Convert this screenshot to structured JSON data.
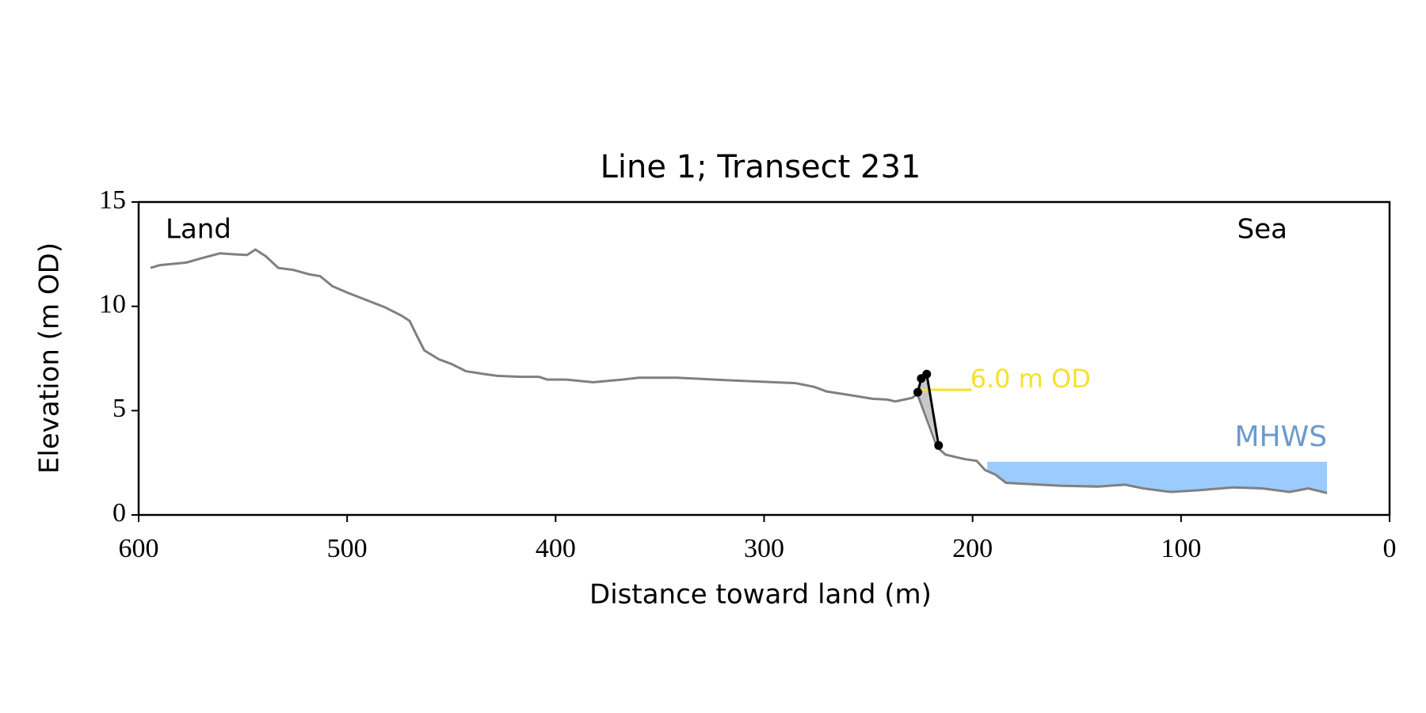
{
  "chart_data": {
    "type": "line",
    "title": "Line 1; Transect 231",
    "xlabel": "Distance toward land (m)",
    "ylabel": "Elevation (m OD)",
    "xlim": [
      600,
      0
    ],
    "ylim": [
      0,
      15
    ],
    "xticks": [
      600,
      500,
      400,
      300,
      200,
      100,
      0
    ],
    "yticks": [
      0,
      5,
      10,
      15
    ],
    "profile": {
      "color": "#808080",
      "x": [
        594.3,
        590,
        577,
        570,
        561,
        555,
        548,
        544,
        539,
        533,
        526,
        518,
        513,
        507,
        500,
        491,
        482,
        474,
        470,
        467,
        463,
        456,
        450,
        443,
        434,
        428,
        417,
        408,
        404,
        395,
        382,
        368,
        360,
        342,
        316,
        285,
        276,
        270,
        259,
        248,
        241,
        237,
        229,
        226.5,
        217,
        213,
        204,
        198,
        194,
        189,
        184,
        175,
        158,
        140,
        127,
        118,
        105,
        92,
        75,
        61,
        48,
        39,
        30
      ],
      "values": [
        11.84,
        11.97,
        12.1,
        12.3,
        12.54,
        12.5,
        12.46,
        12.72,
        12.4,
        11.84,
        11.75,
        11.53,
        11.45,
        10.96,
        10.66,
        10.31,
        9.96,
        9.56,
        9.3,
        8.68,
        7.89,
        7.46,
        7.24,
        6.89,
        6.75,
        6.67,
        6.62,
        6.62,
        6.49,
        6.49,
        6.36,
        6.49,
        6.58,
        6.58,
        6.45,
        6.32,
        6.14,
        5.92,
        5.75,
        5.57,
        5.53,
        5.44,
        5.61,
        5.8,
        3.25,
        2.89,
        2.68,
        2.59,
        2.15,
        1.93,
        1.54,
        1.49,
        1.4,
        1.36,
        1.45,
        1.27,
        1.1,
        1.18,
        1.32,
        1.27,
        1.1,
        1.27,
        1.05
      ]
    },
    "cliff": {
      "color": "#000000",
      "x": [
        226.3,
        224.6,
        222,
        216.3
      ],
      "values": [
        5.88,
        6.54,
        6.75,
        3.33
      ]
    },
    "threshold": {
      "label": "6.0 m OD",
      "value": 6.0,
      "x": [
        224.6,
        200.4
      ],
      "color": "#f5e12e"
    },
    "mhws": {
      "label": "MHWS",
      "value": 2.55,
      "x": [
        193,
        30
      ],
      "color": "#9ccbff",
      "label_color": "#6a9bcc"
    },
    "annotations": [
      "Land",
      "Sea"
    ]
  }
}
